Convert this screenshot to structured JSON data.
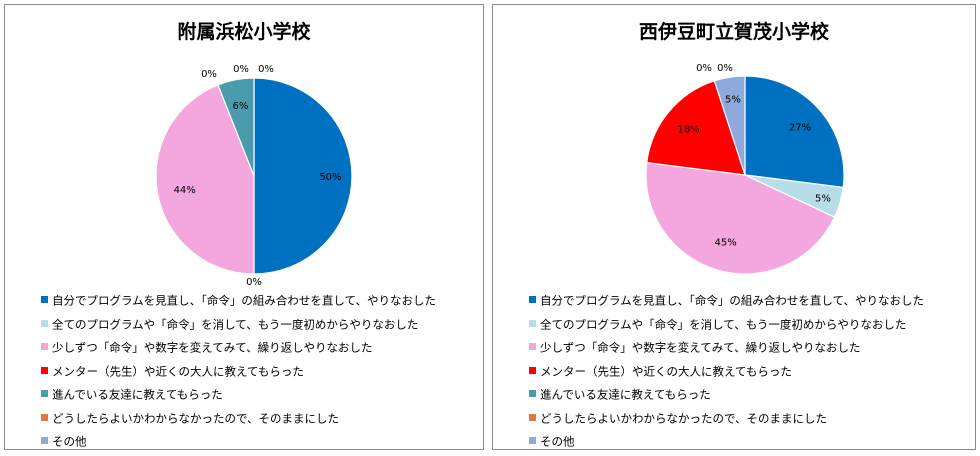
{
  "colors": [
    "#0070C0",
    "#B7DDE8",
    "#F4A6DE",
    "#FF0000",
    "#4A9BAC",
    "#E07B39",
    "#8EA9DB"
  ],
  "categories": [
    "自分でプログラムを見直し、「命令」の組み合わせを直して、やりなおした",
    "全てのプログラムや「命令」を消して、もう一度初めからやりなおした",
    "少しずつ「命令」や数字を変えてみて、繰り返しやりなおした",
    "メンター（先生）や近くの大人に教えてもらった",
    "進んでいる友達に教えてもらった",
    "どうしたらよいかわからなかったので、そのままにした",
    "その他"
  ],
  "chart_data": [
    {
      "type": "pie",
      "title": "附属浜松小学校",
      "values": [
        50,
        0,
        44,
        0,
        6,
        0,
        0
      ],
      "labels": [
        "50%",
        "0%",
        "44%",
        "0%",
        "6%",
        "0%",
        "0%"
      ],
      "legend": "bottom"
    },
    {
      "type": "pie",
      "title": "西伊豆町立賀茂小学校",
      "values": [
        27,
        5,
        45,
        18,
        0,
        0,
        5
      ],
      "labels": [
        "27%",
        "5%",
        "45%",
        "18%",
        "0%",
        "0%",
        "5%"
      ],
      "legend": "bottom"
    }
  ]
}
